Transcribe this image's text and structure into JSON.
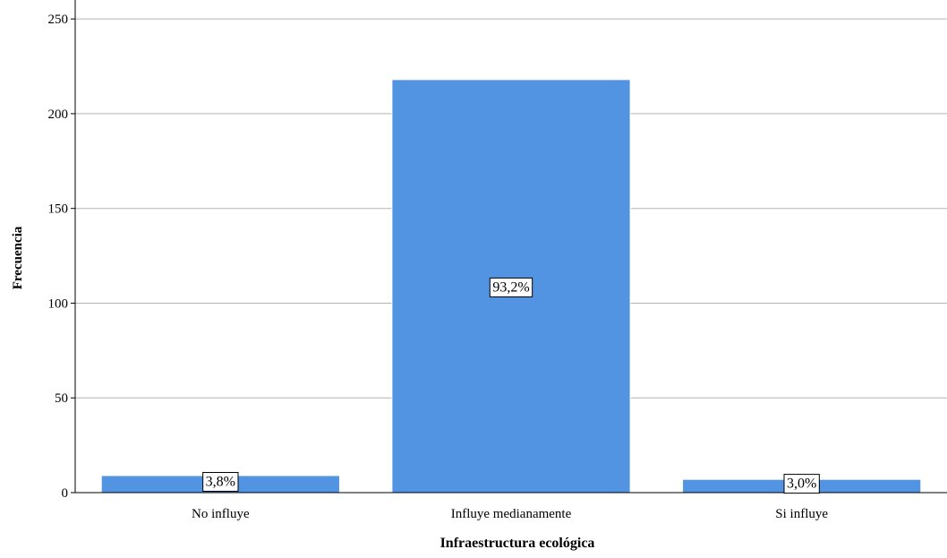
{
  "chart_data": {
    "type": "bar",
    "title": "",
    "xlabel": "Infraestructura ecológica",
    "ylabel": "Frecuencia",
    "categories": [
      "No influye",
      "Influye medianamente",
      "Si influye"
    ],
    "values": [
      9,
      218,
      7
    ],
    "data_labels": [
      "3,8%",
      "93,2%",
      "3,0%"
    ],
    "ylim": [
      0,
      260
    ],
    "yticks": [
      0,
      50,
      100,
      150,
      200,
      250
    ],
    "grid": true,
    "legend": "none",
    "colors": {
      "bar": "#5294e2",
      "bar_border": "#ffffff",
      "grid": "#b3b3b3",
      "axis": "#000000",
      "label_box_fill": "#ffffff",
      "label_box_border": "#000000"
    }
  }
}
